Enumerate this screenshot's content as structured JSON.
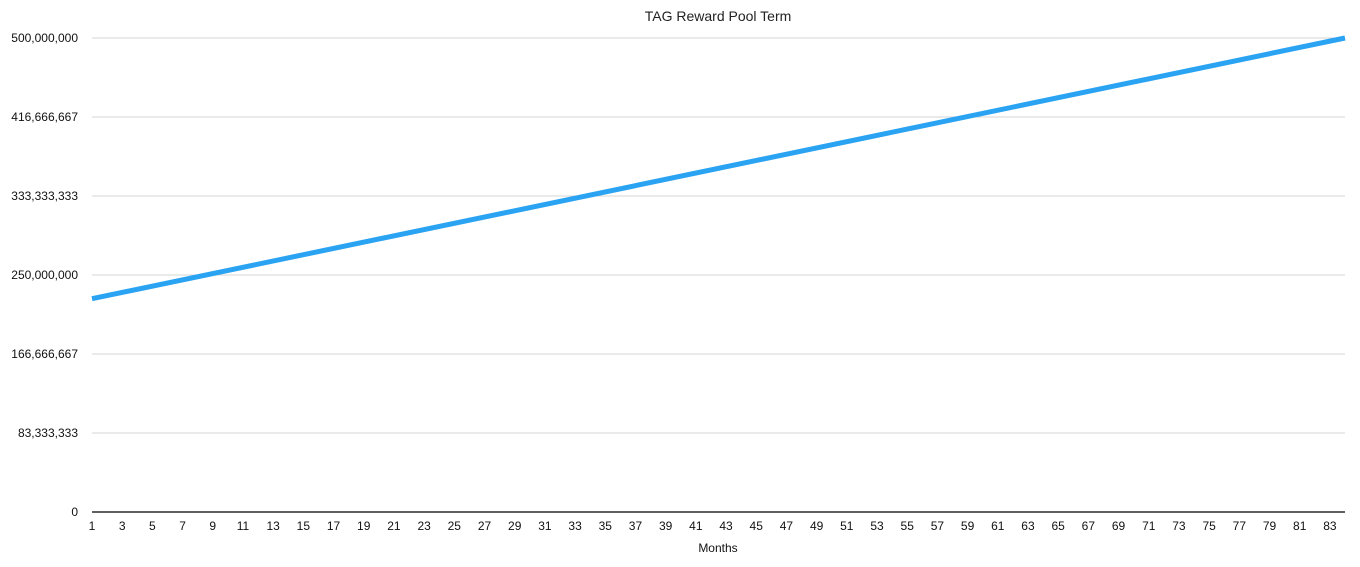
{
  "chart_data": {
    "type": "line",
    "title": "TAG Reward Pool Term",
    "xlabel": "Months",
    "ylabel": "",
    "x_range": [
      1,
      84
    ],
    "ylim": [
      0,
      500000000
    ],
    "y_ticks": [
      0,
      83333333,
      166666667,
      250000000,
      333333333,
      416666667,
      500000000
    ],
    "y_tick_labels": [
      "0",
      "83,333,333",
      "166,666,667",
      "250,000,000",
      "333,333,333",
      "416,666,667",
      "500,000,000"
    ],
    "x_tick_labels": [
      "1",
      "3",
      "5",
      "7",
      "9",
      "11",
      "13",
      "15",
      "17",
      "19",
      "21",
      "23",
      "25",
      "27",
      "29",
      "31",
      "33",
      "35",
      "37",
      "39",
      "41",
      "43",
      "45",
      "47",
      "49",
      "51",
      "53",
      "55",
      "57",
      "59",
      "61",
      "63",
      "65",
      "67",
      "69",
      "71",
      "73",
      "75",
      "77",
      "79",
      "81",
      "83"
    ],
    "grid": true,
    "legend": "none",
    "series": [
      {
        "color": "#2aa3f2",
        "x": [
          1,
          84
        ],
        "y": [
          225000000,
          500000000
        ]
      }
    ]
  }
}
